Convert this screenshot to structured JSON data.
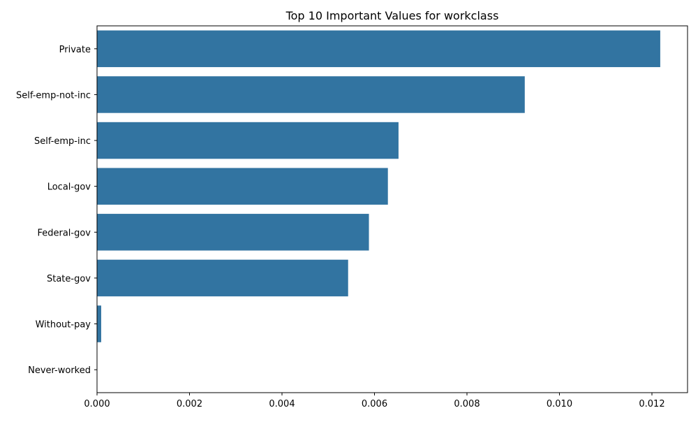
{
  "chart_data": {
    "type": "bar",
    "orientation": "horizontal",
    "title": "Top 10 Important Values for workclass",
    "xlabel": "",
    "ylabel": "",
    "categories": [
      "Private",
      "Self-emp-not-inc",
      "Self-emp-inc",
      "Local-gov",
      "Federal-gov",
      "State-gov",
      "Without-pay",
      "Never-worked"
    ],
    "values": [
      0.01218,
      0.00925,
      0.00652,
      0.00629,
      0.00588,
      0.00543,
      9e-05,
      0.0
    ],
    "xlim": [
      0,
      0.01277
    ],
    "xticks": [
      "0.000",
      "0.002",
      "0.004",
      "0.006",
      "0.008",
      "0.010",
      "0.012"
    ],
    "grid": false,
    "legend": "none",
    "bar_color": "#3274a1"
  }
}
